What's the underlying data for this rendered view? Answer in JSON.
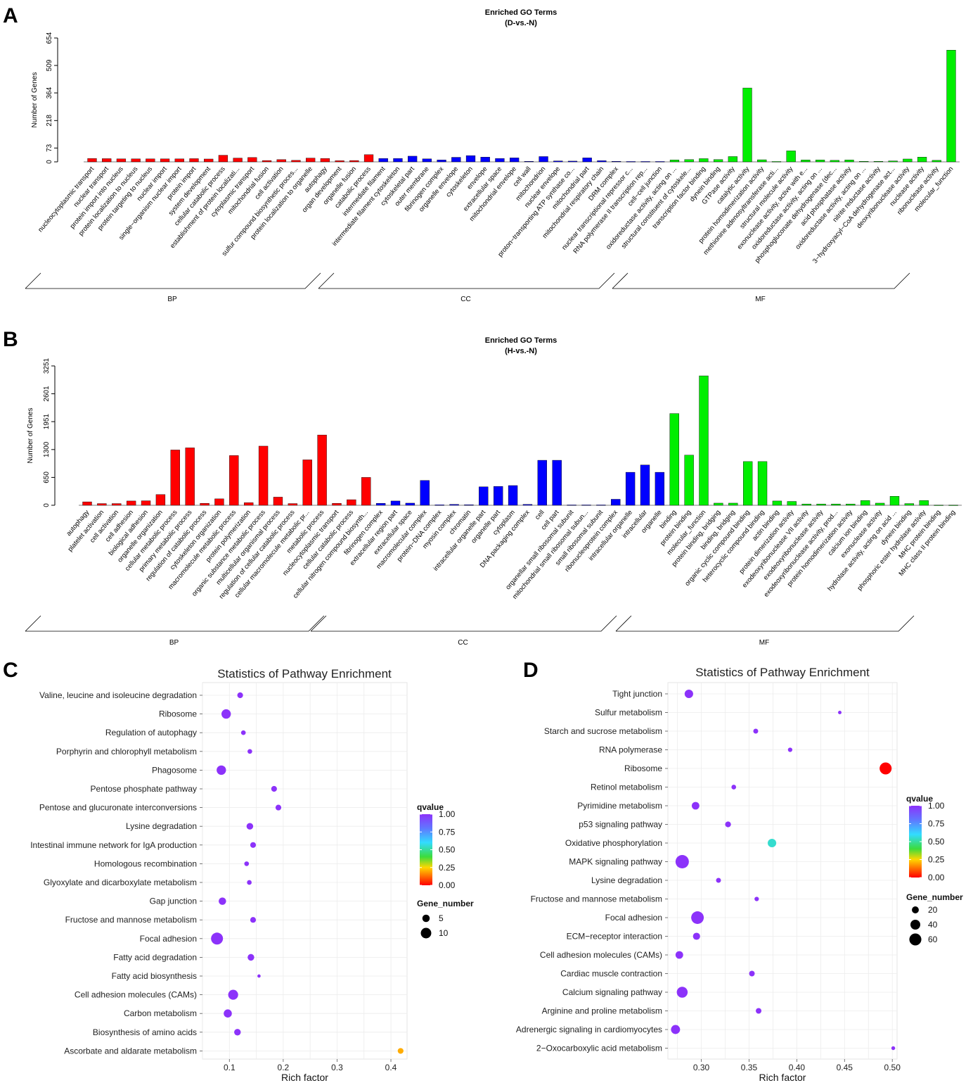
{
  "panels": {
    "a": "A",
    "b": "B",
    "c": "C",
    "d": "D"
  },
  "colors": {
    "BP": "#ff0000",
    "CC": "#0000ff",
    "MF": "#00ee00"
  },
  "chart_data": [
    {
      "id": "A",
      "type": "bar",
      "title": "Enriched GO Terms",
      "subtitle": "(D-vs.-N)",
      "ylabel": "Number of Genes",
      "yticks": [
        0,
        73,
        218,
        364,
        509,
        654
      ],
      "ylim": [
        0,
        654
      ],
      "groups": [
        "BP",
        "CC",
        "MF"
      ],
      "categories": [
        "nucleocytoplasmic transport",
        "nuclear transport",
        "protein import into nucleus",
        "protein localization to nucleus",
        "protein targeting to nucleus",
        "nuclear import",
        "single−organism nuclear import",
        "protein import",
        "system development",
        "cellular catabolic process",
        "establishment of protein localizati...",
        "cytoplasmic transport",
        "mitochondrial fusion",
        "cell activation",
        "sulfur compound biosynthetic proces...",
        "protein localization to organelle",
        "autophagy",
        "organ development",
        "organelle fusion",
        "catabolic process",
        "intermediate filament",
        "intermediate filament cytoskeleton",
        "cytoskeletal part",
        "outer membrane",
        "fibrinogen complex",
        "organelle envelope",
        "cytoskeleton",
        "envelope",
        "extracellular space",
        "mitochondrial envelope",
        "cell wall",
        "mitochondrion",
        "nuclear envelope",
        "proton−transporting ATP synthase co...",
        "mitochondrial part",
        "mitochondrial respiratory chain",
        "DRM complex",
        "nuclear transcriptional repressor c...",
        "RNA polymerase II transcription rep...",
        "cell−cell junction",
        "oxidoreductase activity, acting on ...",
        "structural constituent of cytoskele...",
        "transcription factor binding",
        "dynein binding",
        "GTPase activity",
        "catalytic activity",
        "protein homodimerization activity",
        "methionine adenosyltransferase acti...",
        "structural molecule activity",
        "exonuclease activity, active with e...",
        "oxidoreductase activity, acting on ...",
        "phosphogluconate dehydrogenase (dec...",
        "acid phosphatase activity",
        "oxidoreductase activity, acting on ...",
        "nitrite reductase activity",
        "3−hydroxyacyl−CoA dehydrogenase act...",
        "deoxyribonuclease activity",
        "nuclease activity",
        "ribonuclease activity",
        "molecular_function"
      ],
      "category_group": [
        "BP",
        "BP",
        "BP",
        "BP",
        "BP",
        "BP",
        "BP",
        "BP",
        "BP",
        "BP",
        "BP",
        "BP",
        "BP",
        "BP",
        "BP",
        "BP",
        "BP",
        "BP",
        "BP",
        "BP",
        "CC",
        "CC",
        "CC",
        "CC",
        "CC",
        "CC",
        "CC",
        "CC",
        "CC",
        "CC",
        "CC",
        "CC",
        "CC",
        "CC",
        "CC",
        "CC",
        "CC",
        "CC",
        "CC",
        "CC",
        "MF",
        "MF",
        "MF",
        "MF",
        "MF",
        "MF",
        "MF",
        "MF",
        "MF",
        "MF",
        "MF",
        "MF",
        "MF",
        "MF",
        "MF",
        "MF",
        "MF",
        "MF",
        "MF",
        "MF"
      ],
      "values": [
        18,
        17,
        16,
        16,
        16,
        16,
        16,
        17,
        15,
        35,
        20,
        23,
        7,
        12,
        8,
        20,
        18,
        6,
        7,
        38,
        18,
        18,
        30,
        16,
        10,
        24,
        33,
        25,
        18,
        21,
        3,
        28,
        5,
        4,
        21,
        6,
        3,
        2,
        2,
        2,
        10,
        12,
        17,
        12,
        28,
        390,
        11,
        2,
        58,
        10,
        10,
        8,
        10,
        3,
        3,
        5,
        15,
        25,
        8,
        590
      ]
    },
    {
      "id": "B",
      "type": "bar",
      "title": "Enriched GO Terms",
      "subtitle": "(H-vs.-N)",
      "ylabel": "Number of Genes",
      "yticks": [
        0,
        650,
        1300,
        1951,
        2601,
        3251
      ],
      "ylim": [
        0,
        3251
      ],
      "groups": [
        "BP",
        "CC",
        "MF"
      ],
      "categories": [
        "autophagy",
        "platelet activation",
        "cell activation",
        "cell adhesion",
        "biological adhesion",
        "organelle organization",
        "cellular metabolic process",
        "primary metabolic process",
        "regulation of catabolic process",
        "cytoskeleton organization",
        "macromolecule metabolic process",
        "protein polymerization",
        "organic substance metabolic process",
        "multicellular organismal process",
        "regulation of cellular catabolic process",
        "cellular macromolecule metabolic pr...",
        "metabolic process",
        "nucleocytoplasmic transport",
        "cellular catabolic process",
        "cellular nitrogen compound biosynth...",
        "fibrinogen complex",
        "extracellular region part",
        "extracellular space",
        "macromolecular complex",
        "protein−DNA complex",
        "myosin complex",
        "chromatin",
        "intracellular organelle part",
        "organelle part",
        "cytoplasm",
        "DNA packaging complex",
        "cell",
        "cell part",
        "organellar small ribosomal subunit",
        "mitochondrial small ribosomal subun...",
        "small ribosomal subunit",
        "ribonucleoprotein complex",
        "intracellular organelle",
        "intracellular",
        "organelle",
        "binding",
        "protein binding",
        "molecular_function",
        "protein binding, bridging",
        "binding, bridging",
        "organic cyclic compound binding",
        "heterocyclic compound binding",
        "actin binding",
        "protein dimerization activity",
        "exodeoxyribonuclease VII activity",
        "exodeoxyribonuclease activity",
        "exodeoxyribonuclease activity, prod...",
        "protein homodimerization activity",
        "calcium ion binding",
        "exonuclease activity",
        "hydrolase activity, acting on acid ...",
        "dynein binding",
        "phosphoric ester hydrolase activity",
        "MHC protein binding",
        "MHC class II protein binding"
      ],
      "category_group": [
        "BP",
        "BP",
        "BP",
        "BP",
        "BP",
        "BP",
        "BP",
        "BP",
        "BP",
        "BP",
        "BP",
        "BP",
        "BP",
        "BP",
        "BP",
        "BP",
        "BP",
        "BP",
        "BP",
        "BP",
        "CC",
        "CC",
        "CC",
        "CC",
        "CC",
        "CC",
        "CC",
        "CC",
        "CC",
        "CC",
        "CC",
        "CC",
        "CC",
        "CC",
        "CC",
        "CC",
        "CC",
        "CC",
        "CC",
        "CC",
        "MF",
        "MF",
        "MF",
        "MF",
        "MF",
        "MF",
        "MF",
        "MF",
        "MF",
        "MF",
        "MF",
        "MF",
        "MF",
        "MF",
        "MF",
        "MF",
        "MF",
        "MF",
        "MF",
        "MF"
      ],
      "values": [
        80,
        40,
        40,
        100,
        105,
        250,
        1290,
        1340,
        45,
        150,
        1160,
        60,
        1380,
        190,
        40,
        1060,
        1640,
        45,
        130,
        650,
        45,
        100,
        50,
        580,
        10,
        20,
        12,
        430,
        440,
        460,
        20,
        1050,
        1050,
        8,
        8,
        8,
        140,
        770,
        940,
        770,
        2140,
        1170,
        3020,
        50,
        50,
        1020,
        1020,
        100,
        90,
        30,
        30,
        30,
        30,
        110,
        50,
        210,
        40,
        110,
        5,
        5
      ]
    },
    {
      "id": "C",
      "type": "scatter",
      "title": "Statistics of Pathway Enrichment",
      "xlabel": "Rich factor",
      "xticks": [
        0.1,
        0.2,
        0.3,
        0.4
      ],
      "xlim": [
        0.05,
        0.43
      ],
      "categories": [
        "Valine, leucine and isoleucine degradation",
        "Ribosome",
        "Regulation of autophagy",
        "Porphyrin and chlorophyll metabolism",
        "Phagosome",
        "Pentose phosphate pathway",
        "Pentose and glucuronate interconversions",
        "Lysine degradation",
        "Intestinal immune network for IgA production",
        "Homologous recombination",
        "Glyoxylate and dicarboxylate metabolism",
        "Gap junction",
        "Fructose and mannose metabolism",
        "Focal adhesion",
        "Fatty acid degradation",
        "Fatty acid biosynthesis",
        "Cell adhesion molecules (CAMs)",
        "Carbon metabolism",
        "Biosynthesis of amino acids",
        "Ascorbate and aldarate metabolism"
      ],
      "x": [
        0.12,
        0.094,
        0.126,
        0.138,
        0.085,
        0.183,
        0.191,
        0.138,
        0.144,
        0.132,
        0.137,
        0.087,
        0.144,
        0.077,
        0.14,
        0.155,
        0.107,
        0.097,
        0.115,
        0.418
      ],
      "gene_number": [
        3,
        8,
        2,
        2,
        8,
        3,
        3,
        4,
        3,
        2,
        2,
        5,
        3,
        13,
        4,
        1,
        9,
        6,
        4,
        3
      ],
      "qvalue": [
        1.0,
        1.0,
        1.0,
        1.0,
        1.0,
        1.0,
        1.0,
        1.0,
        1.0,
        1.0,
        1.0,
        1.0,
        1.0,
        1.0,
        1.0,
        1.0,
        1.0,
        1.0,
        1.0,
        0.2
      ],
      "legend_qvalue_title": "qvalue",
      "legend_qvalue_ticks": [
        "1.00",
        "0.75",
        "0.50",
        "0.25",
        "0.00"
      ],
      "legend_size_title": "Gene_number",
      "legend_size_ticks": [
        5,
        10
      ]
    },
    {
      "id": "D",
      "type": "scatter",
      "title": "Statistics of Pathway Enrichment",
      "xlabel": "Rich factor",
      "xticks": [
        0.3,
        0.35,
        0.4,
        0.45,
        0.5
      ],
      "xticklabels": [
        "0.30",
        "0.35",
        "0.40",
        "0.45",
        "0.50"
      ],
      "xlim": [
        0.265,
        0.505
      ],
      "categories": [
        "Tight junction",
        "Sulfur metabolism",
        "Starch and sucrose metabolism",
        "RNA polymerase",
        "Ribosome",
        "Retinol metabolism",
        "Pyrimidine metabolism",
        "p53 signaling pathway",
        "Oxidative phosphorylation",
        "MAPK signaling pathway",
        "Lysine degradation",
        "Fructose and mannose metabolism",
        "Focal adhesion",
        "ECM−receptor interaction",
        "Cell adhesion molecules (CAMs)",
        "Cardiac muscle contraction",
        "Calcium signaling pathway",
        "Arginine and proline metabolism",
        "Adrenergic signaling in cardiomyocytes",
        "2−Oxocarboxylic acid metabolism"
      ],
      "x": [
        0.287,
        0.445,
        0.357,
        0.393,
        0.493,
        0.334,
        0.294,
        0.328,
        0.374,
        0.28,
        0.318,
        0.358,
        0.296,
        0.295,
        0.277,
        0.353,
        0.28,
        0.36,
        0.273,
        0.501
      ],
      "gene_number": [
        30,
        5,
        10,
        8,
        60,
        9,
        24,
        14,
        30,
        74,
        10,
        8,
        66,
        21,
        24,
        13,
        49,
        13,
        34,
        6
      ],
      "qvalue": [
        1.0,
        1.0,
        1.0,
        1.0,
        0.0,
        1.0,
        1.0,
        1.0,
        0.55,
        1.0,
        1.0,
        1.0,
        1.0,
        1.0,
        1.0,
        1.0,
        1.0,
        1.0,
        1.0,
        1.0
      ],
      "legend_qvalue_title": "qvalue",
      "legend_qvalue_ticks": [
        "1.00",
        "0.75",
        "0.50",
        "0.25",
        "0.00"
      ],
      "legend_size_title": "Gene_number",
      "legend_size_ticks": [
        20,
        40,
        60
      ]
    }
  ]
}
